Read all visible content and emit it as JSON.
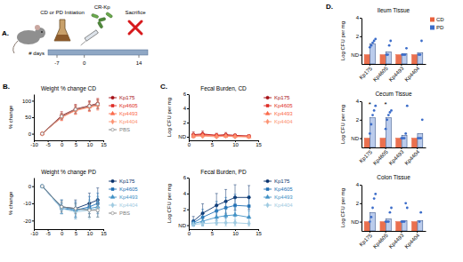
{
  "diagram": {
    "label": "A.",
    "initiation": "CD or PD Initiation",
    "inoculum": "CR-Kp",
    "endpoint": "Sacrifice",
    "timeline_label": "# days",
    "days": [
      -7,
      0,
      14
    ]
  },
  "panel_labels": [
    "B.",
    "C.",
    "D."
  ],
  "chart_data": [
    {
      "type": "line",
      "title": "Weight % change CD",
      "y_label": "% change",
      "x": [
        -7,
        0,
        5,
        10,
        13
      ],
      "xlim": [
        -10,
        15
      ],
      "xticks": [
        -10,
        -5,
        0,
        5,
        10,
        15
      ],
      "ylim": [
        -20,
        120
      ],
      "yticks": [
        0,
        50,
        100
      ],
      "legend": "right",
      "series": [
        {
          "name": "Kp175",
          "color": "#a50f15",
          "marker": "circle",
          "values": [
            0,
            55,
            75,
            85,
            92
          ],
          "errors": [
            0,
            12,
            14,
            15,
            15
          ]
        },
        {
          "name": "Kp4605",
          "color": "#de2d26",
          "marker": "square",
          "values": [
            0,
            50,
            72,
            83,
            88
          ],
          "errors": [
            0,
            10,
            12,
            14,
            14
          ]
        },
        {
          "name": "Kp4493",
          "color": "#fb6a4a",
          "marker": "triangle",
          "values": [
            0,
            52,
            73,
            82,
            90
          ],
          "errors": [
            0,
            11,
            13,
            14,
            15
          ]
        },
        {
          "name": "Kp4404",
          "color": "#fc9272",
          "marker": "diamond",
          "values": [
            0,
            50,
            70,
            80,
            85
          ],
          "errors": [
            0,
            10,
            12,
            13,
            14
          ]
        },
        {
          "name": "PBS",
          "color": "#7f7f7f",
          "marker": "open-circle",
          "values": [
            0,
            53,
            74,
            84,
            90
          ],
          "errors": [
            0,
            9,
            11,
            12,
            13
          ]
        }
      ]
    },
    {
      "type": "line",
      "title": "Weight % change PD",
      "y_label": "% change",
      "x": [
        -7,
        0,
        5,
        10,
        13
      ],
      "xlim": [
        -10,
        15
      ],
      "xticks": [
        -10,
        -5,
        0,
        5,
        10,
        15
      ],
      "ylim": [
        -25,
        5
      ],
      "yticks": [
        -20,
        -10,
        0
      ],
      "legend": "right",
      "series": [
        {
          "name": "Kp175",
          "color": "#08306b",
          "marker": "circle",
          "values": [
            0,
            -12,
            -13,
            -10,
            -8
          ],
          "errors": [
            0,
            4,
            5,
            6,
            7
          ]
        },
        {
          "name": "Kp4605",
          "color": "#2171b5",
          "marker": "square",
          "values": [
            0,
            -13,
            -14,
            -12,
            -10
          ],
          "errors": [
            0,
            3,
            5,
            6,
            6
          ]
        },
        {
          "name": "Kp4493",
          "color": "#4292c6",
          "marker": "triangle",
          "values": [
            0,
            -12,
            -14,
            -13,
            -12
          ],
          "errors": [
            0,
            4,
            4,
            5,
            6
          ]
        },
        {
          "name": "Kp4404",
          "color": "#9ecae1",
          "marker": "diamond",
          "values": [
            0,
            -13,
            -15,
            -14,
            -13
          ],
          "errors": [
            0,
            3,
            4,
            5,
            5
          ]
        },
        {
          "name": "PBS",
          "color": "#7f7f7f",
          "marker": "open-circle",
          "values": [
            0,
            -12,
            -13,
            -14,
            -14
          ],
          "errors": [
            0,
            3,
            3,
            4,
            4
          ]
        }
      ]
    },
    {
      "type": "line",
      "title": "Fecal Burden, CD",
      "y_label": "Log CFU per mg",
      "x": [
        1,
        3,
        6,
        8,
        10,
        13
      ],
      "xlim": [
        0,
        15
      ],
      "xticks": [
        0,
        5,
        10,
        15
      ],
      "ylim": [
        -0.5,
        6
      ],
      "yticks": [
        {
          "value": 0,
          "label": "ND"
        },
        2,
        4,
        6
      ],
      "legend": "right",
      "series": [
        {
          "name": "Kp175",
          "color": "#a50f15",
          "marker": "circle",
          "values": [
            0.3,
            0.4,
            0.2,
            0.3,
            0.2,
            0.1
          ],
          "errors": [
            0.4,
            0.4,
            0.3,
            0.3,
            0.2,
            0.2
          ]
        },
        {
          "name": "Kp4605",
          "color": "#de2d26",
          "marker": "square",
          "values": [
            0.2,
            0.3,
            0.2,
            0.2,
            0.1,
            0.1
          ],
          "errors": [
            0.3,
            0.3,
            0.2,
            0.2,
            0.2,
            0.1
          ]
        },
        {
          "name": "Kp4493",
          "color": "#fb6a4a",
          "marker": "triangle",
          "values": [
            0.1,
            0.2,
            0.1,
            0.1,
            0.1,
            0
          ],
          "errors": [
            0.2,
            0.2,
            0.2,
            0.1,
            0.1,
            0.1
          ]
        },
        {
          "name": "Kp4404",
          "color": "#fc9272",
          "marker": "diamond",
          "values": [
            0.1,
            0.1,
            0,
            0.1,
            0,
            0
          ],
          "errors": [
            0.1,
            0.2,
            0.1,
            0.1,
            0.1,
            0.1
          ]
        }
      ]
    },
    {
      "type": "line",
      "title": "Fecal Burden, PD",
      "y_label": "Log CFU per mg",
      "x": [
        1,
        3,
        6,
        8,
        10,
        13
      ],
      "xlim": [
        0,
        15
      ],
      "xticks": [
        0,
        5,
        10,
        15
      ],
      "ylim": [
        -0.5,
        6
      ],
      "yticks": [
        {
          "value": 0,
          "label": "ND"
        },
        2,
        4,
        6
      ],
      "legend": "right",
      "series": [
        {
          "name": "Kp175",
          "color": "#08306b",
          "marker": "circle",
          "values": [
            0.5,
            1.5,
            2.5,
            3.0,
            3.5,
            3.5
          ],
          "errors": [
            0.6,
            1.2,
            1.5,
            1.5,
            1.6,
            1.5
          ]
        },
        {
          "name": "Kp4605",
          "color": "#2171b5",
          "marker": "square",
          "values": [
            0.3,
            1.0,
            1.8,
            2.2,
            2.5,
            2.4
          ],
          "errors": [
            0.4,
            1.0,
            1.2,
            1.3,
            1.4,
            1.3
          ]
        },
        {
          "name": "Kp4493",
          "color": "#4292c6",
          "marker": "triangle",
          "values": [
            0.2,
            0.5,
            1.0,
            1.2,
            1.3,
            1.0
          ],
          "errors": [
            0.3,
            0.6,
            0.8,
            0.9,
            0.9,
            0.8
          ]
        },
        {
          "name": "Kp4404",
          "color": "#9ecae1",
          "marker": "diamond",
          "values": [
            0.1,
            0.2,
            0.3,
            0.3,
            0.3,
            0.2
          ],
          "errors": [
            0.2,
            0.3,
            0.3,
            0.4,
            0.4,
            0.3
          ]
        }
      ]
    },
    {
      "type": "bar",
      "title": "Ileum Tissue",
      "y_label": "Log CFU per mg",
      "categories": [
        "Kp175",
        "Kp4605",
        "Kp4493",
        "Kp4404"
      ],
      "ylim": [
        -1,
        4
      ],
      "yticks": [
        {
          "value": 0,
          "label": "ND"
        },
        2,
        4
      ],
      "legend": "right",
      "series": [
        {
          "name": "CD",
          "color": "#e8603c",
          "values": [
            0,
            0,
            0,
            0
          ]
        },
        {
          "name": "PD",
          "color": "#3b6cc9",
          "values": [
            1.2,
            0.3,
            0.1,
            0.2
          ],
          "points": [
            [
              0.8,
              1.0,
              1.3,
              1.5,
              1.7
            ],
            [
              0,
              0,
              1.0,
              1.5
            ],
            [
              0,
              0,
              0,
              0.7
            ],
            [
              0,
              0,
              1.5
            ]
          ]
        }
      ]
    },
    {
      "type": "bar",
      "title": "Cecum Tissue",
      "y_label": "Log CFU per mg",
      "categories": [
        "Kp175",
        "Kp4605",
        "Kp4493",
        "Kp4404"
      ],
      "ylim": [
        -1,
        4
      ],
      "yticks": [
        {
          "value": 0,
          "label": "ND"
        },
        2,
        4
      ],
      "annotations": [
        {
          "text": "*",
          "category": "Kp175"
        },
        {
          "text": "*",
          "category": "Kp4605"
        }
      ],
      "series": [
        {
          "name": "CD",
          "color": "#e8603c",
          "values": [
            0,
            0,
            0,
            0
          ]
        },
        {
          "name": "PD",
          "color": "#3b6cc9",
          "values": [
            2.2,
            2.2,
            0.3,
            0.5
          ],
          "points": [
            [
              0.5,
              1.5,
              2.5,
              3.0,
              3.5
            ],
            [
              1.0,
              2.0,
              2.5,
              2.8,
              3.0
            ],
            [
              0,
              0,
              0,
              0.5,
              3.5
            ],
            [
              0,
              0,
              0,
              2.0
            ]
          ]
        }
      ]
    },
    {
      "type": "bar",
      "title": "Colon Tissue",
      "y_label": "Log CFU per mg",
      "categories": [
        "Kp175",
        "Kp4605",
        "Kp4493",
        "Kp4404"
      ],
      "ylim": [
        -1,
        4
      ],
      "yticks": [
        {
          "value": 0,
          "label": "ND"
        },
        2,
        4
      ],
      "series": [
        {
          "name": "CD",
          "color": "#e8603c",
          "values": [
            0,
            0,
            0,
            0
          ]
        },
        {
          "name": "PD",
          "color": "#3b6cc9",
          "values": [
            1.0,
            0.3,
            0.1,
            0.1
          ],
          "points": [
            [
              0,
              0.5,
              1.5,
              2.5,
              3.0
            ],
            [
              0,
              0,
              0,
              1.0,
              1.5
            ],
            [
              0,
              0,
              0,
              2.0,
              1.5
            ],
            [
              0,
              1.0
            ]
          ]
        }
      ]
    }
  ]
}
